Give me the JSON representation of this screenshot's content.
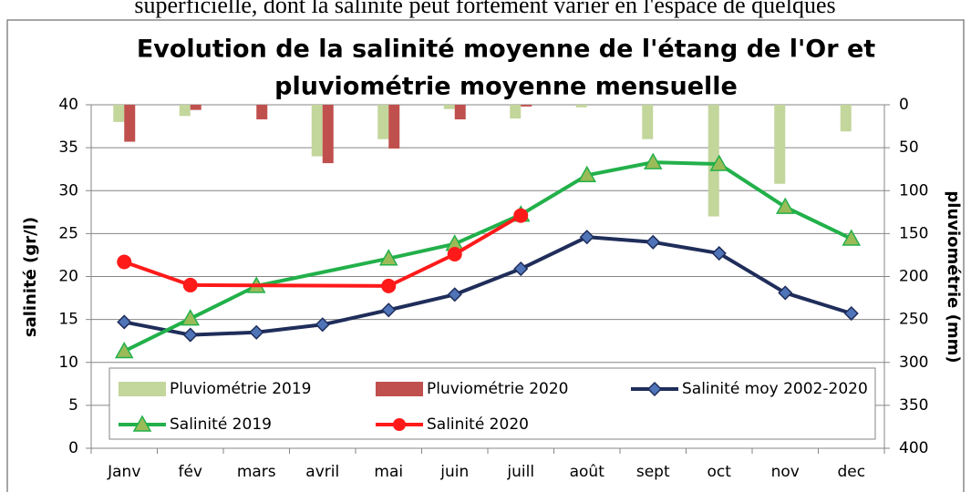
{
  "page_text": "superficielle, dont la salinité peut fortement varier en l'espace de quelques",
  "chart_data": {
    "type": "combo",
    "title": [
      "Evolution de la salinité moyenne de l'étang de l'Or et",
      "pluviométrie moyenne mensuelle"
    ],
    "y_label": "salinité (gr/l)",
    "y2_label": "pluviométrie (mm)",
    "categories": [
      "Janv",
      "fév",
      "mars",
      "avril",
      "mai",
      "juin",
      "juill",
      "août",
      "sept",
      "oct",
      "nov",
      "dec"
    ],
    "ylim": [
      0,
      40
    ],
    "yticks": [
      0,
      5,
      10,
      15,
      20,
      25,
      30,
      35,
      40
    ],
    "y2lim": [
      0,
      400
    ],
    "y2ticks": [
      0,
      50,
      100,
      150,
      200,
      250,
      300,
      350,
      400
    ],
    "y2_inverted": true,
    "grid": true,
    "connect_gaps": true,
    "series": [
      {
        "name": "Pluviométrie 2019",
        "type": "bar",
        "axis": "y2",
        "color": "#c3d69b",
        "values": [
          20,
          13,
          0,
          60,
          40,
          5,
          16,
          3,
          40,
          130,
          92,
          31
        ]
      },
      {
        "name": "Pluviométrie 2020",
        "type": "bar",
        "axis": "y2",
        "color": "#c0504d",
        "values": [
          43,
          6,
          17,
          68,
          51,
          17,
          2,
          null,
          null,
          null,
          null,
          null
        ]
      },
      {
        "name": "Salinité moy 2002-2020",
        "type": "line",
        "marker": "diamond",
        "color": "#1f2d5a",
        "marker_color": "#4f74b8",
        "values": [
          14.7,
          13.2,
          13.5,
          14.4,
          16.1,
          17.9,
          20.9,
          24.6,
          24.0,
          22.7,
          18.1,
          15.7
        ]
      },
      {
        "name": "Salinité 2019",
        "type": "line",
        "marker": "triangle",
        "color": "#22b04a",
        "marker_color": "#9bbb59",
        "values": [
          11.3,
          15.1,
          18.9,
          null,
          22.1,
          23.8,
          27.2,
          31.8,
          33.3,
          33.1,
          28.1,
          24.4
        ]
      },
      {
        "name": "Salinité 2020",
        "type": "line",
        "marker": "circle",
        "color": "#ff1a1a",
        "marker_color": "#ff1a1a",
        "values": [
          21.7,
          19.0,
          null,
          null,
          18.9,
          22.6,
          27.1,
          null,
          null,
          null,
          null,
          null
        ]
      }
    ]
  }
}
